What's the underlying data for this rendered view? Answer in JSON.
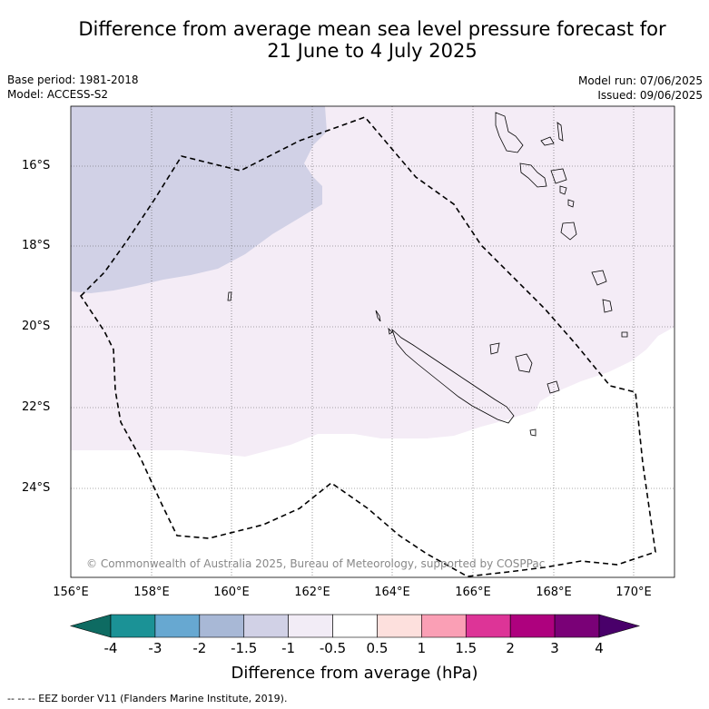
{
  "title_line1": "Difference from average mean sea level pressure forecast for",
  "title_line2": "21 June to 4 July 2025",
  "base_period": "Base period: 1981-2018",
  "model": "Model: ACCESS-S2",
  "model_run": "Model run: 07/06/2025",
  "issued": "Issued: 09/06/2025",
  "copyright": "© Commonwealth of Australia 2025, Bureau of Meteorology, supported by COSPPac",
  "lat_labels": [
    "16°S",
    "18°S",
    "20°S",
    "22°S",
    "24°S"
  ],
  "lon_labels": [
    "156°E",
    "158°E",
    "160°E",
    "162°E",
    "164°E",
    "166°E",
    "168°E",
    "170°E"
  ],
  "colorbar": {
    "label": "Difference from average (hPa)",
    "ticks": [
      "-4",
      "-3",
      "-2",
      "-1.5",
      "-1",
      "-0.5",
      "0.5",
      "1",
      "1.5",
      "2",
      "3",
      "4"
    ],
    "colors": [
      "#0e6b62",
      "#1b9296",
      "#67a8d1",
      "#a8b8d6",
      "#d1d1e6",
      "#f2ecf6",
      "#ffffff",
      "#fde0dd",
      "#fa9fb5",
      "#dd3497",
      "#ae017e",
      "#7a0177",
      "#49006a"
    ]
  },
  "map": {
    "fill_colors": {
      "neg_1_to_1_5": "#d1d1e6",
      "neg_0_5_to_1": "#f4ecf6",
      "neutral": "#ffffff"
    },
    "landmasses": [
      "New Caledonia",
      "Loyalty Islands",
      "Vanuatu"
    ]
  },
  "footer": "--  --  -- EEZ border V11 (Flanders Marine Institute, 2019)."
}
